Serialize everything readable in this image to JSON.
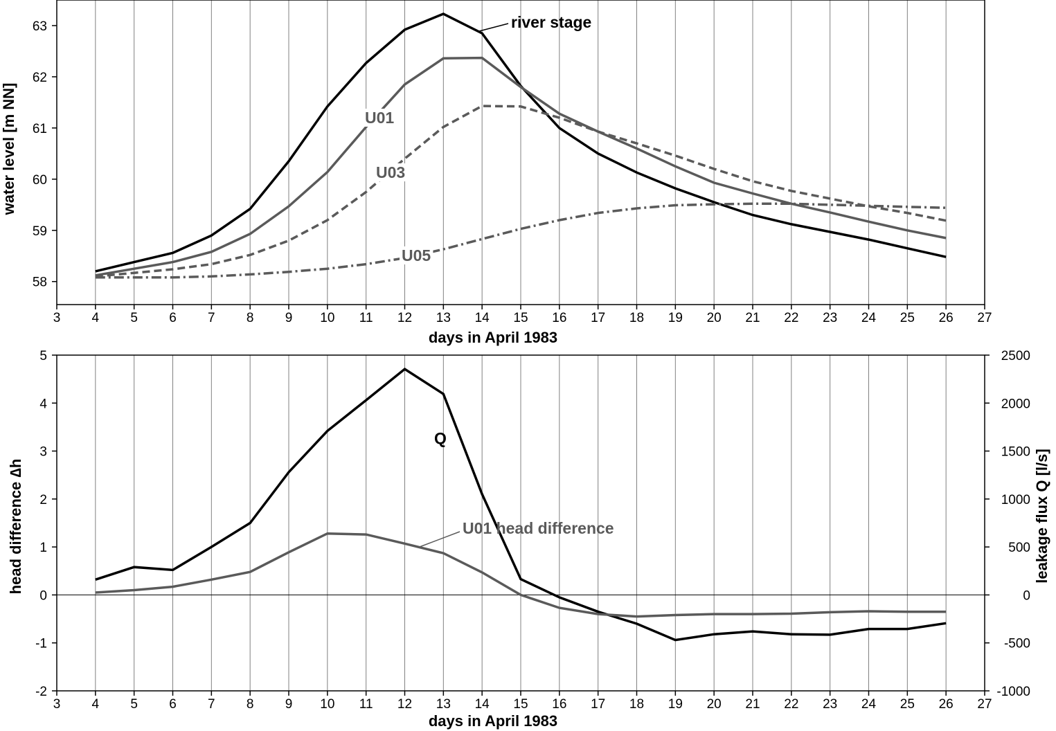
{
  "chart_data": [
    {
      "type": "line",
      "xlabel": "days in April 1983",
      "ylabel": "water level [m NN]",
      "xlim": [
        3,
        27
      ],
      "ylim": [
        57.55,
        63.5
      ],
      "xticks": [
        "3",
        "4",
        "5",
        "6",
        "7",
        "8",
        "9",
        "10",
        "11",
        "12",
        "13",
        "14",
        "15",
        "16",
        "17",
        "18",
        "19",
        "20",
        "21",
        "22",
        "23",
        "24",
        "25",
        "26",
        "27"
      ],
      "yticks": [
        "58",
        "59",
        "60",
        "61",
        "62",
        "63"
      ],
      "grid": "vertical",
      "x": [
        4,
        5,
        6,
        7,
        8,
        9,
        10,
        11,
        12,
        13,
        14,
        15,
        16,
        17,
        18,
        19,
        20,
        21,
        22,
        23,
        24,
        25,
        26
      ],
      "series": [
        {
          "name": "river stage",
          "label": "river stage",
          "color": "#000000",
          "style": "solid",
          "values": [
            58.2,
            58.38,
            58.56,
            58.9,
            59.42,
            60.35,
            61.42,
            62.27,
            62.92,
            63.23,
            62.85,
            61.82,
            61.0,
            60.5,
            60.13,
            59.82,
            59.55,
            59.3,
            59.12,
            58.97,
            58.82,
            58.65,
            58.48
          ]
        },
        {
          "name": "U01",
          "label": "U01",
          "color": "#5a5a5a",
          "style": "solid",
          "values": [
            58.12,
            58.25,
            58.38,
            58.58,
            58.93,
            59.47,
            60.14,
            61.02,
            61.85,
            62.36,
            62.37,
            61.8,
            61.28,
            60.93,
            60.6,
            60.25,
            59.93,
            59.72,
            59.52,
            59.35,
            59.17,
            59.0,
            58.85
          ]
        },
        {
          "name": "U03",
          "label": "U03",
          "color": "#5a5a5a",
          "style": "dashed",
          "values": [
            58.1,
            58.17,
            58.24,
            58.34,
            58.52,
            58.8,
            59.2,
            59.75,
            60.4,
            61.02,
            61.43,
            61.42,
            61.2,
            60.93,
            60.7,
            60.46,
            60.2,
            59.96,
            59.77,
            59.62,
            59.47,
            59.34,
            59.19
          ]
        },
        {
          "name": "U05",
          "label": "U05",
          "color": "#5a5a5a",
          "style": "dashdot",
          "values": [
            58.08,
            58.08,
            58.08,
            58.1,
            58.14,
            58.19,
            58.25,
            58.34,
            58.46,
            58.63,
            58.83,
            59.03,
            59.2,
            59.34,
            59.43,
            59.49,
            59.51,
            59.52,
            59.52,
            59.5,
            59.48,
            59.46,
            59.44
          ]
        }
      ]
    },
    {
      "type": "line",
      "xlabel": "days in April 1983",
      "ylabel": "head difference ∆h",
      "y2label": "leakage flux Q [l/s]",
      "xlim": [
        3,
        27
      ],
      "ylim": [
        -2,
        5
      ],
      "y2lim": [
        -1000,
        2500
      ],
      "xticks": [
        "3",
        "4",
        "5",
        "6",
        "7",
        "8",
        "9",
        "10",
        "11",
        "12",
        "13",
        "14",
        "15",
        "16",
        "17",
        "18",
        "19",
        "20",
        "21",
        "22",
        "23",
        "24",
        "25",
        "26",
        "27"
      ],
      "yticks": [
        "-2",
        "-1",
        "0",
        "1",
        "2",
        "3",
        "4",
        "5"
      ],
      "y2ticks": [
        "-1000",
        "-500",
        "0",
        "500",
        "1000",
        "1500",
        "2000",
        "2500"
      ],
      "grid": "vertical",
      "x": [
        4,
        5,
        6,
        7,
        8,
        9,
        10,
        11,
        12,
        13,
        14,
        15,
        16,
        17,
        18,
        19,
        20,
        21,
        22,
        23,
        24,
        25,
        26
      ],
      "series": [
        {
          "name": "Q",
          "label": "Q",
          "color": "#000000",
          "style": "solid",
          "axis": "right",
          "values": [
            160,
            290,
            260,
            500,
            750,
            1280,
            1710,
            2030,
            2355,
            2095,
            1050,
            165,
            -25,
            -175,
            -300,
            -470,
            -410,
            -380,
            -410,
            -415,
            -355,
            -355,
            -295
          ]
        },
        {
          "name": "U01 head difference",
          "label": "U01 head difference",
          "color": "#5a5a5a",
          "style": "solid",
          "axis": "left",
          "values": [
            0.05,
            0.1,
            0.17,
            0.32,
            0.48,
            0.89,
            1.28,
            1.26,
            1.07,
            0.87,
            0.47,
            0.0,
            -0.27,
            -0.4,
            -0.45,
            -0.42,
            -0.4,
            -0.4,
            -0.39,
            -0.36,
            -0.34,
            -0.35,
            -0.35
          ]
        }
      ]
    }
  ]
}
